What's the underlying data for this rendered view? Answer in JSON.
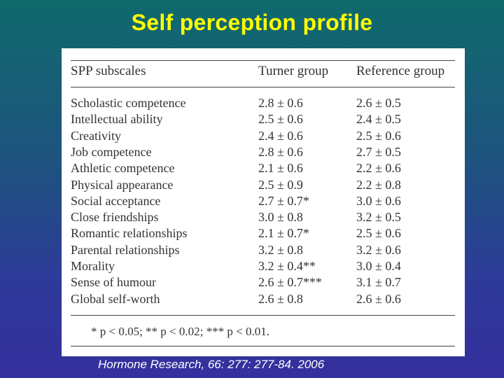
{
  "slide": {
    "title": "Self perception profile",
    "citation": "Hormone Research, 66: 277: 277-84. 2006"
  },
  "table": {
    "headers": [
      "SPP subscales",
      "Turner group",
      "Reference group"
    ],
    "rows": [
      [
        "Scholastic competence",
        "2.8 ± 0.6",
        "2.6 ± 0.5"
      ],
      [
        "Intellectual ability",
        "2.5 ± 0.6",
        "2.4 ± 0.5"
      ],
      [
        "Creativity",
        "2.4 ± 0.6",
        "2.5 ± 0.6"
      ],
      [
        "Job competence",
        "2.8 ± 0.6",
        "2.7 ± 0.5"
      ],
      [
        "Athletic competence",
        "2.1 ± 0.6",
        "2.2 ± 0.6"
      ],
      [
        "Physical appearance",
        "2.5 ± 0.9",
        "2.2 ± 0.8"
      ],
      [
        "Social acceptance",
        "2.7 ± 0.7*",
        "3.0 ± 0.6"
      ],
      [
        "Close friendships",
        "3.0 ± 0.8",
        "3.2 ± 0.5"
      ],
      [
        "Romantic relationships",
        "2.1 ± 0.7*",
        "2.5 ± 0.6"
      ],
      [
        "Parental relationships",
        "3.2 ± 0.8",
        "3.2 ± 0.6"
      ],
      [
        "Morality",
        "3.2 ± 0.4**",
        "3.0 ± 0.4"
      ],
      [
        "Sense of humour",
        "2.6 ± 0.7***",
        "3.1 ± 0.7"
      ],
      [
        "Global self-worth",
        "2.6 ± 0.8",
        "2.6 ± 0.6"
      ]
    ],
    "footnote": "* p < 0.05; ** p < 0.02; *** p < 0.01."
  }
}
